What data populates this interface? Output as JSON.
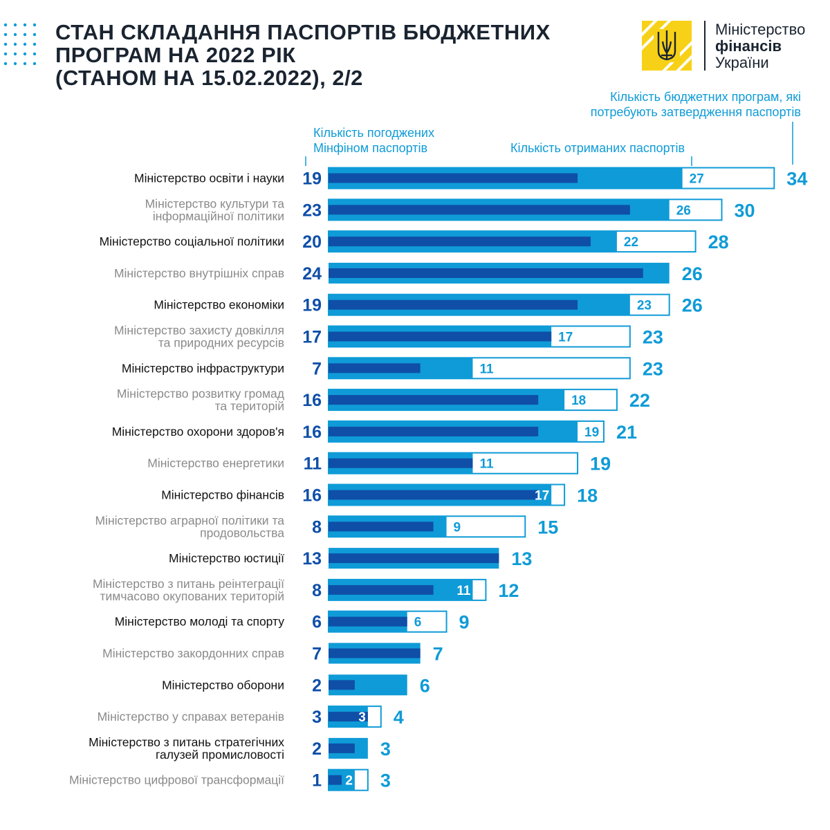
{
  "header": {
    "title_lines": [
      "СТАН СКЛАДАННЯ ПАСПОРТІВ БЮДЖЕТНИХ",
      "ПРОГРАМ НА 2022 РІК",
      "(СТАНОМ НА 15.02.2022), 2/2"
    ]
  },
  "logo": {
    "line1": "Міністерство",
    "line2": "фінансів",
    "line3": "України",
    "emblem": "trident-emblem-icon"
  },
  "colors": {
    "approved": "#0f4fa8",
    "received": "#0f9bd7",
    "required_outline": "#0f9bd7",
    "title": "#1a2430",
    "logo_yellow": "#f7d117"
  },
  "chart_data": {
    "type": "bar",
    "orientation": "horizontal",
    "annotations": {
      "approved": [
        "Кількість погоджених",
        "Мінфіном паспортів"
      ],
      "received": "Кількість отриманих паспортів",
      "required": [
        "Кількість бюджетних програм, які",
        "потребують затвердження паспортів"
      ]
    },
    "categories": [
      [
        "Міністерство освіти і науки"
      ],
      [
        "Міністерство культури та",
        "інформаційної політики"
      ],
      [
        "Міністерство соціальної політики"
      ],
      [
        "Міністерство внутрішніх справ"
      ],
      [
        "Міністерство економіки"
      ],
      [
        "Міністерство захисту довкілля",
        "та природних ресурсів"
      ],
      [
        "Міністерство інфраструктури"
      ],
      [
        "Міністерство розвитку громад",
        "та територій"
      ],
      [
        "Міністерство охорони здоров'я"
      ],
      [
        "Міністерство енергетики"
      ],
      [
        "Міністерство фінансів"
      ],
      [
        "Міністерство аграрної політики та",
        "продовольства"
      ],
      [
        "Міністерство юстиції"
      ],
      [
        "Міністерство з питань реінтеграції",
        "тимчасово окупованих територій"
      ],
      [
        "Міністерство молоді та спорту"
      ],
      [
        "Міністерство закордонних справ"
      ],
      [
        "Міністерство оборони"
      ],
      [
        "Міністерство у справах ветеранів"
      ],
      [
        "Міністерство з питань стратегічних",
        "галузей промисловості"
      ],
      [
        "Міністерство цифрової трансформації"
      ]
    ],
    "series": [
      {
        "key": "approved",
        "values": [
          19,
          23,
          20,
          24,
          19,
          17,
          7,
          16,
          16,
          11,
          16,
          8,
          13,
          8,
          6,
          7,
          2,
          3,
          2,
          1
        ]
      },
      {
        "key": "received",
        "values": [
          27,
          26,
          22,
          26,
          23,
          17,
          11,
          18,
          19,
          11,
          17,
          9,
          13,
          11,
          6,
          7,
          6,
          3,
          3,
          2
        ]
      },
      {
        "key": "required",
        "values": [
          34,
          30,
          28,
          26,
          26,
          23,
          23,
          22,
          21,
          19,
          18,
          15,
          13,
          12,
          9,
          7,
          6,
          4,
          3,
          3
        ]
      }
    ],
    "received_labels": [
      "27",
      "26",
      "22",
      "",
      "23",
      "17",
      "11",
      "18",
      "19",
      "11",
      "17",
      "9",
      "",
      "11",
      "6",
      "",
      "",
      "3",
      "",
      "2"
    ],
    "xlim": [
      0,
      34
    ],
    "grid": false,
    "legend": "annotations-above-bars"
  }
}
